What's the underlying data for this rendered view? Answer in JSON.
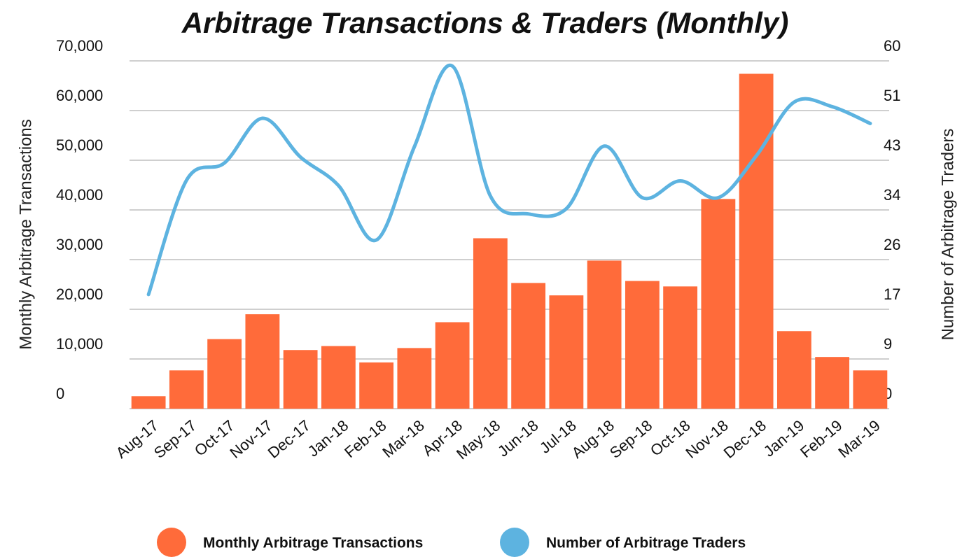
{
  "chart_data": {
    "type": "bar_line",
    "title": "Arbitrage Transactions & Traders (Monthly)",
    "y_label": "Monthly Arbitrage Transactions",
    "y2_label": "Number of Arbitrage Traders",
    "categories": [
      "Aug-17",
      "Sep-17",
      "Oct-17",
      "Nov-17",
      "Dec-17",
      "Jan-18",
      "Feb-18",
      "Mar-18",
      "Apr-18",
      "May-18",
      "Jun-18",
      "Jul-18",
      "Aug-18",
      "Sep-18",
      "Oct-18",
      "Nov-18",
      "Dec-18",
      "Jan-19",
      "Feb-19",
      "Mar-19"
    ],
    "series": [
      {
        "name": "Monthly Arbitrage Transactions",
        "type": "bar",
        "color": "#ff6b3a",
        "axis": "y",
        "values": [
          2500,
          7700,
          14000,
          19000,
          11800,
          12600,
          9300,
          12200,
          17400,
          34300,
          25300,
          22800,
          29800,
          25700,
          24600,
          42200,
          67400,
          15600,
          10400,
          7700
        ]
      },
      {
        "name": "Number of Arbitrage Traders",
        "type": "line",
        "color": "#5db3e0",
        "axis": "y2",
        "values": [
          19.7,
          39.4,
          42.4,
          50.1,
          43.4,
          38.5,
          29.1,
          45.2,
          59.1,
          36.7,
          33.6,
          34.5,
          45.3,
          36.4,
          39.3,
          36.4,
          43.6,
          52.9,
          52.1,
          49.2
        ]
      }
    ],
    "ylim": [
      0,
      70000
    ],
    "yticks": [
      0,
      {
        "value": 10000,
        "label": "10,000"
      },
      {
        "value": 20000,
        "label": "20,000"
      },
      {
        "value": 30000,
        "label": "30,000"
      },
      {
        "value": 40000,
        "label": "40,000"
      },
      {
        "value": 50000,
        "label": "50,000"
      },
      {
        "value": 60000,
        "label": "60,000"
      },
      {
        "value": 70000,
        "label": "70,000"
      }
    ],
    "y2lim": [
      0,
      60
    ],
    "y2ticks": [
      0,
      {
        "value": 8.571,
        "label": "9"
      },
      {
        "value": 17.143,
        "label": "17"
      },
      {
        "value": 25.714,
        "label": "26"
      },
      {
        "value": 34.286,
        "label": "34"
      },
      {
        "value": 42.857,
        "label": "43"
      },
      {
        "value": 51.429,
        "label": "51"
      },
      60
    ],
    "grid": true,
    "legend": "bottom"
  }
}
